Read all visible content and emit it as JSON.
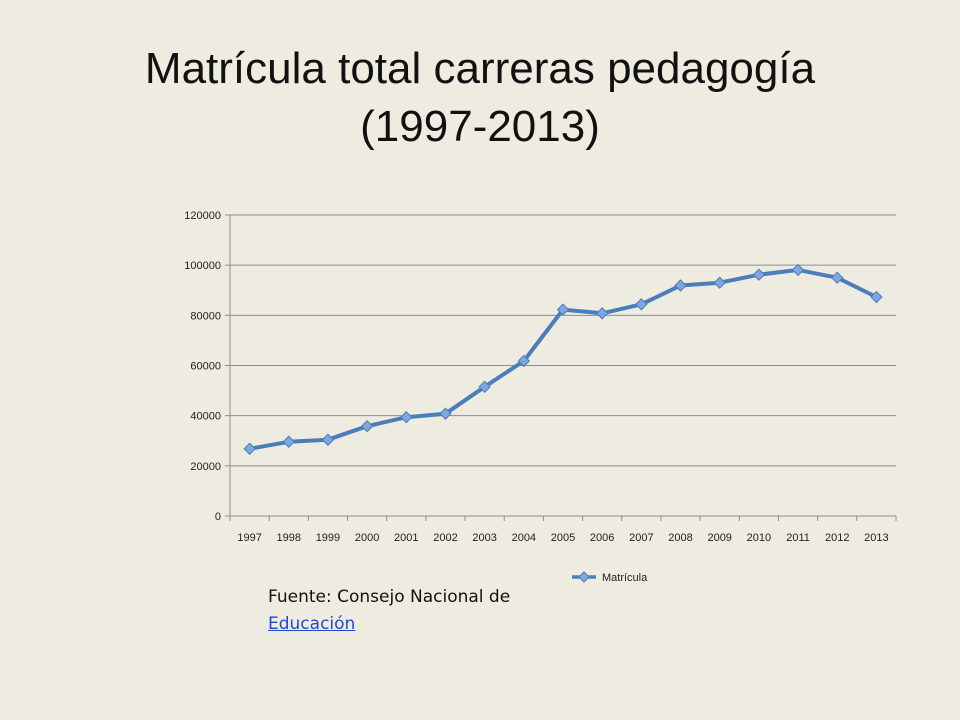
{
  "slide": {
    "title_line1": "Matrícula total carreras pedagogía",
    "title_line2": "(1997-2013)",
    "source_prefix": "Fuente:  Consejo Nacional de",
    "source_link": "Educación"
  },
  "chart_data": {
    "type": "line",
    "categories": [
      "1997",
      "1998",
      "1999",
      "2000",
      "2001",
      "2002",
      "2003",
      "2004",
      "2005",
      "2006",
      "2007",
      "2008",
      "2009",
      "2010",
      "2011",
      "2012",
      "2013"
    ],
    "series": [
      {
        "name": "Matrícula",
        "values": [
          26800,
          29600,
          30400,
          35800,
          39400,
          40800,
          51500,
          61800,
          82300,
          80800,
          84400,
          91900,
          93000,
          96200,
          98100,
          95000,
          87300
        ],
        "color": "#4A7EBB",
        "marker_color": "#7FA6DE"
      }
    ],
    "ylim": [
      0,
      120000
    ],
    "yticks": [
      0,
      20000,
      40000,
      60000,
      80000,
      100000,
      120000
    ],
    "ytick_labels": [
      "0",
      "20000",
      "40000",
      "60000",
      "80000",
      "100000",
      "120000"
    ],
    "grid": true,
    "legend_position": "bottom",
    "title": "",
    "xlabel": "",
    "ylabel": ""
  }
}
